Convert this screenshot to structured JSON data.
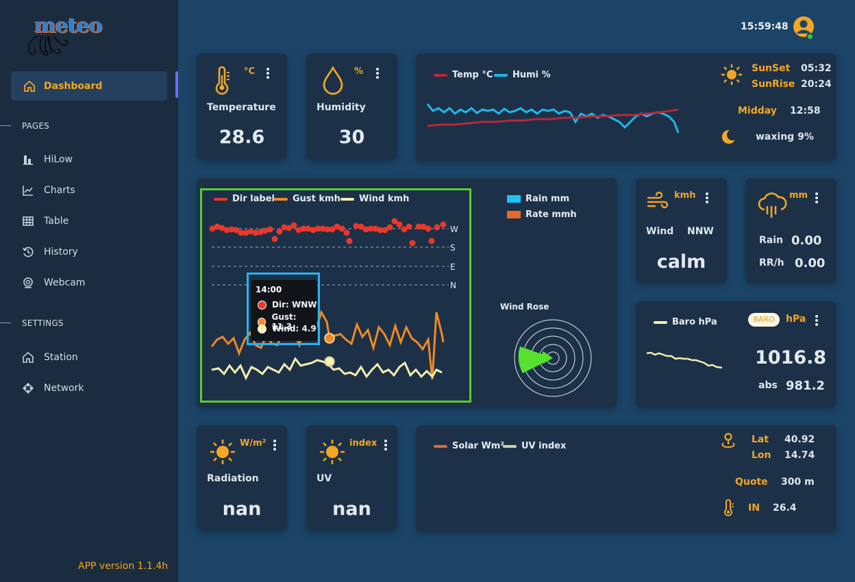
{
  "app": {
    "logo_text": "meteo",
    "version": "APP version 1.1.4h"
  },
  "topbar": {
    "clock": "15:59:48"
  },
  "sidebar": {
    "active": {
      "label": "Dashboard",
      "icon": "home-icon"
    },
    "pages_title": "PAGES",
    "pages": [
      {
        "label": "HiLow",
        "icon": "bar-chart-icon"
      },
      {
        "label": "Charts",
        "icon": "line-chart-icon"
      },
      {
        "label": "Table",
        "icon": "table-icon"
      },
      {
        "label": "History",
        "icon": "history-icon"
      },
      {
        "label": "Webcam",
        "icon": "webcam-icon"
      }
    ],
    "settings_title": "SETTINGS",
    "settings": [
      {
        "label": "Station",
        "icon": "home-icon"
      },
      {
        "label": "Network",
        "icon": "network-icon"
      }
    ]
  },
  "temperature": {
    "unit": "°C",
    "title": "Temperature",
    "value": "28.6",
    "icon": "thermometer-icon"
  },
  "humidity": {
    "unit": "%",
    "title": "Humidity",
    "value": "30",
    "icon": "droplet-icon"
  },
  "temphumi_chart": {
    "legend": [
      {
        "label": "Temp °C",
        "color": "#b8283a"
      },
      {
        "label": "Humi %",
        "color": "#22b7e8"
      }
    ]
  },
  "sun": {
    "sunset_label": "SunSet",
    "sunset": "05:32",
    "sunrise_label": "SunRise",
    "sunrise": "20:24",
    "midday_label": "Midday",
    "midday": "12:58",
    "moon": "waxing 9%"
  },
  "wind_chart": {
    "legend": [
      {
        "label": "Dir label",
        "color": "#e8392b"
      },
      {
        "label": "Gust kmh",
        "color": "#f08a24"
      },
      {
        "label": "Wind kmh",
        "color": "#f7efb0"
      }
    ],
    "dir_labels": [
      "W",
      "S",
      "E",
      "N"
    ],
    "tooltip": {
      "time": "14:00",
      "dir": "Dir: WNW",
      "gust": "Gust: 11.3",
      "wind": "Wind: 4.9"
    }
  },
  "rain_chart": {
    "legend": [
      {
        "label": "Rain mm",
        "color": "#1ec3f2"
      },
      {
        "label": "Rate mmh",
        "color": "#e8692b"
      }
    ],
    "rose_title": "Wind Rose"
  },
  "wind_card": {
    "unit": "kmh",
    "title": "Wind",
    "dir": "NNW",
    "value": "calm",
    "icon": "wind-icon"
  },
  "rain_card": {
    "unit": "mm",
    "rain_label": "Rain",
    "rain": "0.00",
    "rr_label": "RR/h",
    "rr": "0.00",
    "icon": "rain-cloud-icon"
  },
  "baro_card": {
    "legend": "Baro hPa",
    "badge": "BARO",
    "unit": "hPa",
    "value": "1016.8",
    "abs_label": "abs",
    "abs": "981.2"
  },
  "radiation": {
    "unit": "W/m²",
    "title": "Radiation",
    "value": "nan",
    "icon": "sun-icon"
  },
  "uv": {
    "unit": "index",
    "title": "UV",
    "value": "nan",
    "icon": "sun-icon"
  },
  "solar_chart": {
    "legend": [
      {
        "label": "Solar Wm²",
        "color": "#e8692b"
      },
      {
        "label": "UV index",
        "color": "#c9d4a8"
      }
    ]
  },
  "location": {
    "lat_label": "Lat",
    "lat": "40.92",
    "lon_label": "Lon",
    "lon": "14.74",
    "quote_label": "Quote",
    "quote": "300 m",
    "in_label": "IN",
    "in": "26.4"
  },
  "colors": {
    "accent": "#f5a623",
    "background": "#1b4466",
    "card": "#1c3148",
    "sidebar": "#1a2c3e",
    "highlight_green": "#55d12e",
    "online": "#2ecc40"
  }
}
